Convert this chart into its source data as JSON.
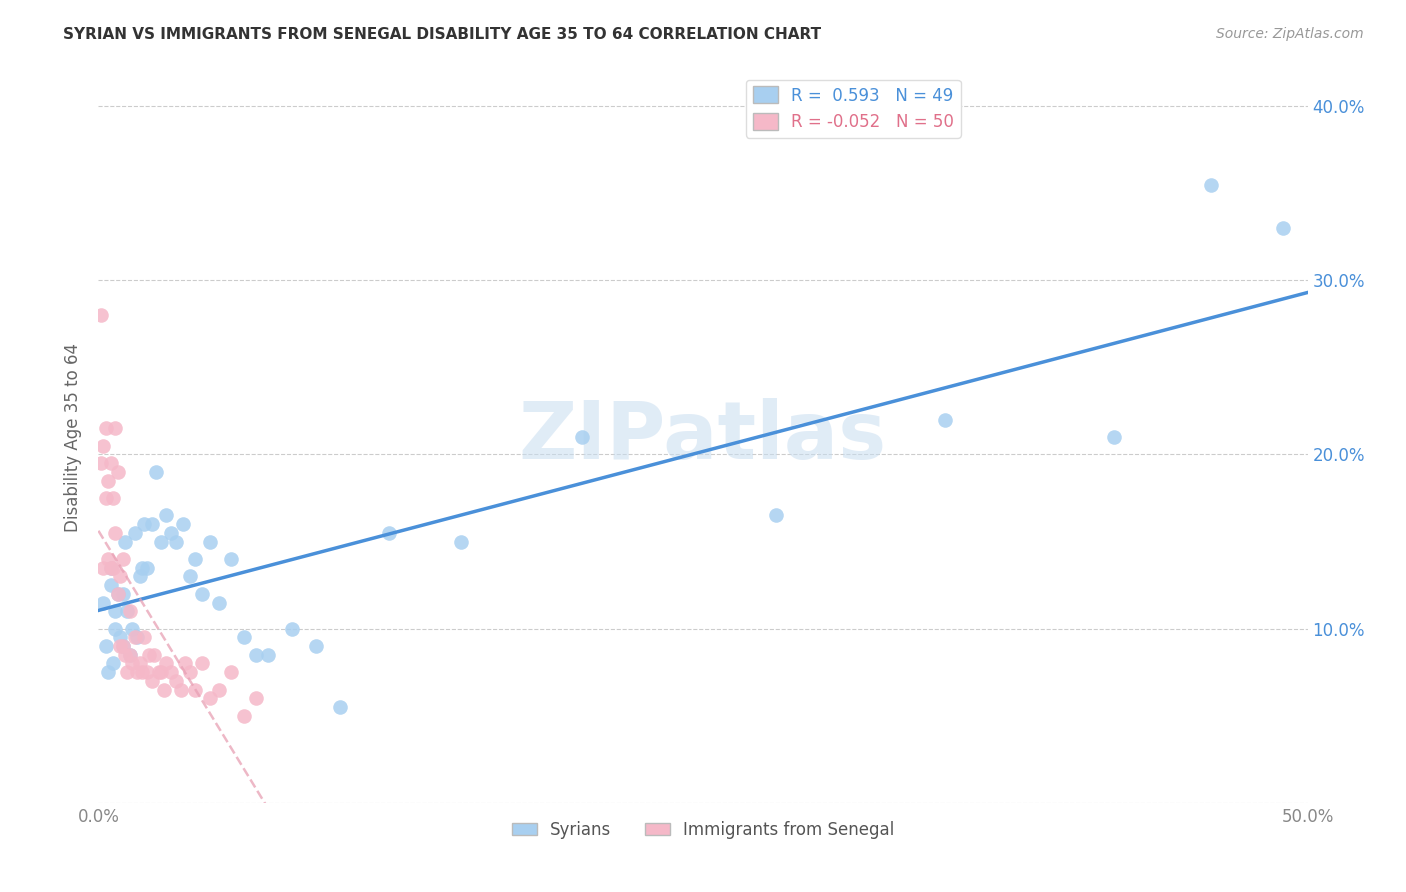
{
  "title": "SYRIAN VS IMMIGRANTS FROM SENEGAL DISABILITY AGE 35 TO 64 CORRELATION CHART",
  "source": "Source: ZipAtlas.com",
  "ylabel": "Disability Age 35 to 64",
  "xlim": [
    0.0,
    0.5
  ],
  "ylim": [
    0.0,
    0.42
  ],
  "xticks": [
    0.0,
    0.1,
    0.2,
    0.3,
    0.4,
    0.5
  ],
  "xticklabels": [
    "0.0%",
    "",
    "",
    "",
    "",
    "50.0%"
  ],
  "yticks": [
    0.0,
    0.1,
    0.2,
    0.3,
    0.4
  ],
  "yticklabels_left": [
    "",
    "",
    "",
    "",
    ""
  ],
  "yticklabels_right": [
    "",
    "10.0%",
    "20.0%",
    "30.0%",
    "40.0%"
  ],
  "syrians_R": 0.593,
  "syrians_N": 49,
  "senegal_R": -0.052,
  "senegal_N": 50,
  "syrians_color": "#a8cff0",
  "senegal_color": "#f5b8c8",
  "syrians_line_color": "#4a90d9",
  "senegal_line_color": "#e8a0b4",
  "watermark": "ZIPatlas",
  "syrians_x": [
    0.002,
    0.003,
    0.004,
    0.005,
    0.005,
    0.006,
    0.007,
    0.007,
    0.008,
    0.009,
    0.01,
    0.01,
    0.011,
    0.012,
    0.013,
    0.014,
    0.015,
    0.016,
    0.017,
    0.018,
    0.019,
    0.02,
    0.022,
    0.024,
    0.026,
    0.028,
    0.03,
    0.032,
    0.035,
    0.038,
    0.04,
    0.043,
    0.046,
    0.05,
    0.055,
    0.06,
    0.065,
    0.07,
    0.08,
    0.09,
    0.1,
    0.12,
    0.15,
    0.2,
    0.28,
    0.35,
    0.42,
    0.46,
    0.49
  ],
  "syrians_y": [
    0.115,
    0.09,
    0.075,
    0.125,
    0.135,
    0.08,
    0.11,
    0.1,
    0.12,
    0.095,
    0.12,
    0.09,
    0.15,
    0.11,
    0.085,
    0.1,
    0.155,
    0.095,
    0.13,
    0.135,
    0.16,
    0.135,
    0.16,
    0.19,
    0.15,
    0.165,
    0.155,
    0.15,
    0.16,
    0.13,
    0.14,
    0.12,
    0.15,
    0.115,
    0.14,
    0.095,
    0.085,
    0.085,
    0.1,
    0.09,
    0.055,
    0.155,
    0.15,
    0.21,
    0.165,
    0.22,
    0.21,
    0.355,
    0.33
  ],
  "senegal_x": [
    0.001,
    0.001,
    0.002,
    0.002,
    0.003,
    0.003,
    0.004,
    0.004,
    0.005,
    0.005,
    0.006,
    0.006,
    0.007,
    0.007,
    0.008,
    0.008,
    0.009,
    0.009,
    0.01,
    0.01,
    0.011,
    0.012,
    0.013,
    0.013,
    0.014,
    0.015,
    0.016,
    0.017,
    0.018,
    0.019,
    0.02,
    0.021,
    0.022,
    0.023,
    0.025,
    0.026,
    0.027,
    0.028,
    0.03,
    0.032,
    0.034,
    0.036,
    0.038,
    0.04,
    0.043,
    0.046,
    0.05,
    0.055,
    0.06,
    0.065
  ],
  "senegal_y": [
    0.28,
    0.195,
    0.205,
    0.135,
    0.215,
    0.175,
    0.185,
    0.14,
    0.195,
    0.135,
    0.175,
    0.135,
    0.215,
    0.155,
    0.19,
    0.12,
    0.13,
    0.09,
    0.14,
    0.09,
    0.085,
    0.075,
    0.085,
    0.11,
    0.08,
    0.095,
    0.075,
    0.08,
    0.075,
    0.095,
    0.075,
    0.085,
    0.07,
    0.085,
    0.075,
    0.075,
    0.065,
    0.08,
    0.075,
    0.07,
    0.065,
    0.08,
    0.075,
    0.065,
    0.08,
    0.06,
    0.065,
    0.075,
    0.05,
    0.06
  ],
  "bg_color": "#ffffff",
  "grid_color": "#cccccc",
  "tick_color": "#888888"
}
